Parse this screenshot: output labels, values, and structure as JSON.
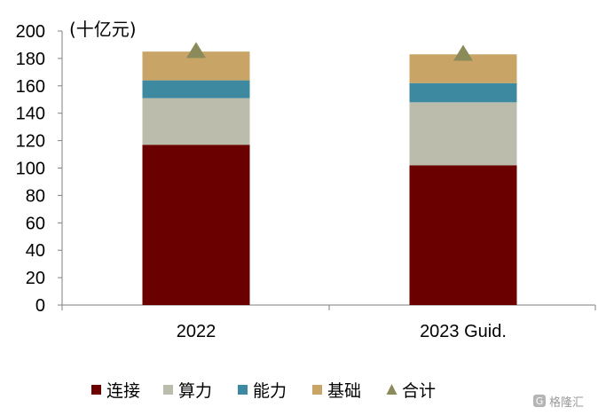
{
  "chart_data": {
    "type": "bar",
    "stacked": true,
    "unit_label": "(十亿元)",
    "categories": [
      "2022",
      "2023 Guid."
    ],
    "ylim": [
      0,
      200
    ],
    "yticks": [
      0,
      20,
      40,
      60,
      80,
      100,
      120,
      140,
      160,
      180,
      200
    ],
    "series": [
      {
        "name": "连接",
        "color": "#6b0000",
        "values": [
          117,
          102
        ]
      },
      {
        "name": "算力",
        "color": "#bcbcad",
        "values": [
          34,
          46
        ]
      },
      {
        "name": "能力",
        "color": "#3d8aa0",
        "values": [
          13,
          14
        ]
      },
      {
        "name": "基础",
        "color": "#c8a566",
        "values": [
          21,
          21
        ]
      }
    ],
    "total": {
      "name": "合计",
      "color": "#8b8a5a",
      "marker": "triangle",
      "values": [
        185,
        183
      ]
    },
    "grid": false,
    "legend_position": "bottom"
  },
  "watermark": {
    "text": "格隆汇",
    "icon": "g-logo-icon"
  }
}
